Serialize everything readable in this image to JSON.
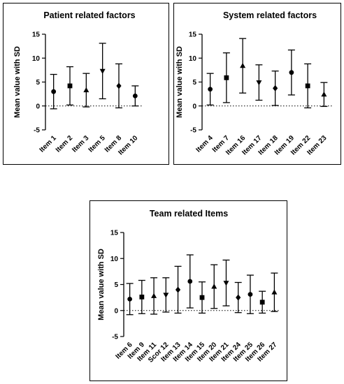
{
  "chart_data": [
    {
      "type": "scatter",
      "title": "Patient related factors",
      "ylabel": "Mean value with SD",
      "xlabel": "",
      "ylim": [
        -5,
        15
      ],
      "yticks": [
        -5,
        0,
        5,
        10,
        15
      ],
      "reference_line": 0,
      "categories": [
        "Item 1",
        "Item 2",
        "Item 3",
        "Item 5",
        "Item 8",
        "Item 10"
      ],
      "mean": [
        3.0,
        4.2,
        3.3,
        7.3,
        4.2,
        2.1
      ],
      "sd": [
        3.6,
        4.0,
        3.5,
        5.8,
        4.6,
        2.1
      ],
      "markers": [
        "circle",
        "square",
        "triangle",
        "triangle-down",
        "diamond",
        "circle"
      ]
    },
    {
      "type": "scatter",
      "title": "System related factors",
      "ylabel": "Mean value with SD",
      "xlabel": "",
      "ylim": [
        -5,
        15
      ],
      "yticks": [
        -5,
        0,
        5,
        10,
        15
      ],
      "reference_line": 0,
      "categories": [
        "Item 4",
        "Item 7",
        "Item 16",
        "Item 17",
        "Item 18",
        "Item 19",
        "Item 22",
        "Item 23"
      ],
      "mean": [
        3.5,
        5.9,
        8.4,
        4.9,
        3.7,
        7.0,
        4.2,
        2.4
      ],
      "sd": [
        3.3,
        5.2,
        5.7,
        3.7,
        3.6,
        4.7,
        4.6,
        2.5
      ],
      "markers": [
        "circle",
        "square",
        "triangle",
        "triangle-down",
        "diamond",
        "circle",
        "square",
        "triangle"
      ]
    },
    {
      "type": "scatter",
      "title": "Team related Items",
      "ylabel": "Mean value with SD",
      "xlabel": "",
      "ylim": [
        -5,
        15
      ],
      "yticks": [
        -5,
        0,
        5,
        10,
        15
      ],
      "reference_line": 0,
      "categories": [
        "Item 6",
        "Item 9",
        "Item 11",
        "Scor 12",
        "Item 13",
        "Item 14",
        "Item 15",
        "Item 20",
        "Item 21",
        "Item 24",
        "Item 25",
        "Item 26",
        "Item 27"
      ],
      "mean": [
        2.2,
        2.6,
        2.8,
        3.0,
        4.0,
        5.6,
        2.5,
        4.6,
        5.3,
        2.5,
        3.1,
        1.6,
        3.5
      ],
      "sd": [
        3.0,
        3.2,
        3.5,
        3.3,
        4.5,
        5.1,
        3.0,
        4.2,
        4.4,
        2.9,
        3.7,
        2.1,
        3.7
      ],
      "markers": [
        "circle",
        "square",
        "triangle",
        "triangle-down",
        "diamond",
        "circle",
        "square",
        "triangle",
        "triangle-down",
        "diamond",
        "circle",
        "square",
        "triangle"
      ]
    }
  ]
}
